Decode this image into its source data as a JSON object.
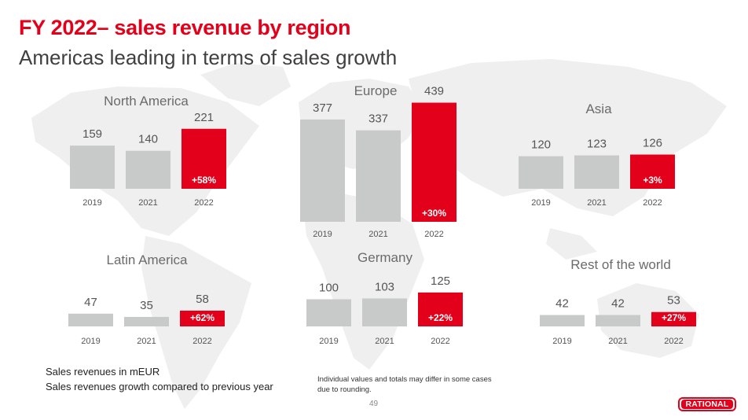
{
  "header": {
    "title": "FY 2022– sales revenue by region",
    "subtitle": "Americas leading in terms of sales growth"
  },
  "footer": {
    "legend_unit": "Sales revenues in mEUR",
    "legend_growth": "Sales revenues growth compared to previous year",
    "disclaimer": "Individual values and totals may differ in some cases due to rounding.",
    "page_number": "49",
    "logo_text": "RATIONAL"
  },
  "colors": {
    "highlight": "#e2001a",
    "bar": "#c8c9c9",
    "map": "#efefef"
  },
  "chart_data": [
    {
      "type": "bar",
      "title": "North America",
      "categories": [
        "2019",
        "2021",
        "2022"
      ],
      "values": [
        159,
        140,
        221
      ],
      "growth_label": "+58%"
    },
    {
      "type": "bar",
      "title": "Europe",
      "categories": [
        "2019",
        "2021",
        "2022"
      ],
      "values": [
        377,
        337,
        439
      ],
      "growth_label": "+30%"
    },
    {
      "type": "bar",
      "title": "Asia",
      "categories": [
        "2019",
        "2021",
        "2022"
      ],
      "values": [
        120,
        123,
        126
      ],
      "growth_label": "+3%"
    },
    {
      "type": "bar",
      "title": "Latin America",
      "categories": [
        "2019",
        "2021",
        "2022"
      ],
      "values": [
        47,
        35,
        58
      ],
      "growth_label": "+62%"
    },
    {
      "type": "bar",
      "title": "Germany",
      "categories": [
        "2019",
        "2021",
        "2022"
      ],
      "values": [
        100,
        103,
        125
      ],
      "growth_label": "+22%"
    },
    {
      "type": "bar",
      "title": "Rest of the world",
      "categories": [
        "2019",
        "2021",
        "2022"
      ],
      "values": [
        42,
        42,
        53
      ],
      "growth_label": "+27%"
    }
  ]
}
